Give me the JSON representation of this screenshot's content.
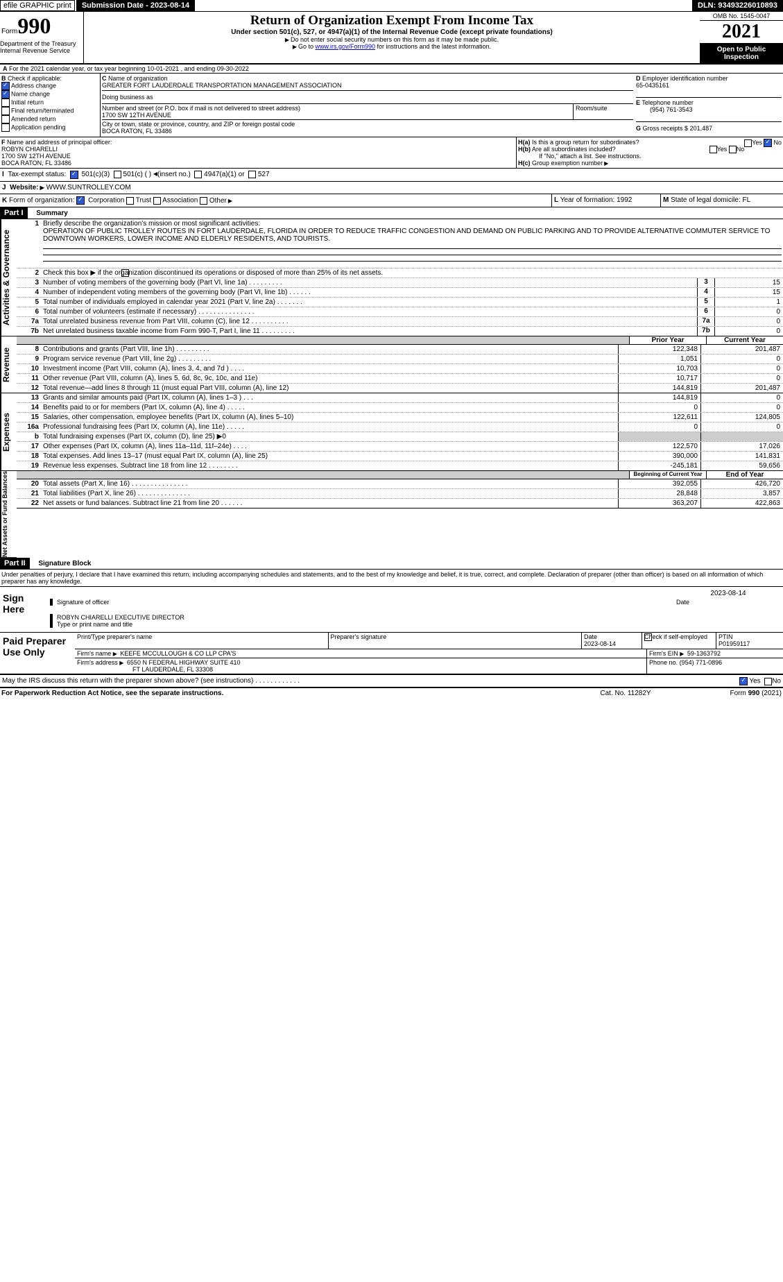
{
  "header": {
    "efile": "efile GRAPHIC print",
    "submission": "Submission Date - 2023-08-14",
    "dln": "DLN: 93493226010893"
  },
  "form": {
    "word": "Form",
    "num": "990",
    "title": "Return of Organization Exempt From Income Tax",
    "sub": "Under section 501(c), 527, or 4947(a)(1) of the Internal Revenue Code (except private foundations)",
    "l1": "Do not enter social security numbers on this form as it may be made public.",
    "l2": "Go to ",
    "link": "www.irs.gov/Form990",
    "l3": " for instructions and the latest information.",
    "omb": "OMB No. 1545-0047",
    "year": "2021",
    "open": "Open to Public Inspection",
    "dept": "Department of the Treasury Internal Revenue Service"
  },
  "A": {
    "txt": "For the 2021 calendar year, or tax year beginning 10-01-2021   , and ending 09-30-2022"
  },
  "B": {
    "label": "Check if applicable:",
    "i1": "Address change",
    "i2": "Name change",
    "i3": "Initial return",
    "i4": "Final return/terminated",
    "i5": "Amended return",
    "i6": "Application pending"
  },
  "C": {
    "namehdr": "Name of organization",
    "name": "GREATER FORT LAUDERDALE TRANSPORTATION MANAGEMENT ASSOCIATION",
    "dba": "Doing business as",
    "addrh": "Number and street (or P.O. box if mail is not delivered to street address)",
    "room": "Room/suite",
    "addr": "1700 SW 12TH AVENUE",
    "cityh": "City or town, state or province, country, and ZIP or foreign postal code",
    "city": "BOCA RATON, FL  33486"
  },
  "D": {
    "h": "Employer identification number",
    "v": "65-0435161"
  },
  "E": {
    "h": "Telephone number",
    "v": "(954) 761-3543"
  },
  "G": {
    "h": "Gross receipts $",
    "v": "201,487"
  },
  "F": {
    "h": "Name and address of principal officer:",
    "n": "ROBYN CHIARELLI",
    "a1": "1700 SW 12TH AVENUE",
    "a2": "BOCA RATON, FL  33486"
  },
  "H": {
    "a": "Is this a group return for subordinates?",
    "b": "Are all subordinates included?",
    "no": "If \"No,\" attach a list. See instructions.",
    "c": "Group exemption number",
    "yes": "Yes",
    "nolbl": "No"
  },
  "I": {
    "h": "Tax-exempt status:",
    "o1": "501(c)(3)",
    "o2": "501(c) (   )",
    "ins": "(insert no.)",
    "o3": "4947(a)(1) or",
    "o4": "527"
  },
  "J": {
    "h": "Website:",
    "v": "WWW.SUNTROLLEY.COM"
  },
  "K": {
    "h": "Form of organization:",
    "o1": "Corporation",
    "o2": "Trust",
    "o3": "Association",
    "o4": "Other"
  },
  "L": {
    "h": "Year of formation:",
    "v": "1992"
  },
  "M": {
    "h": "State of legal domicile:",
    "v": "FL"
  },
  "partI": {
    "label": "Part I",
    "title": "Summary"
  },
  "s1": {
    "h": "Briefly describe the organization's mission or most significant activities:",
    "txt": "OPERATION OF PUBLIC TROLLEY ROUTES IN FORT LAUDERDALE, FLORIDA IN ORDER TO REDUCE TRAFFIC CONGESTION AND DEMAND ON PUBLIC PARKING AND TO PROVIDE ALTERNATIVE COMMUTER SERVICE TO DOWNTOWN WORKERS, LOWER INCOME AND ELDERLY RESIDENTS, AND TOURISTS."
  },
  "gov": {
    "side": "Activities & Governance",
    "l2": "Check this box ▶      if the organization discontinued its operations or disposed of more than 25% of its net assets.",
    "l3": "Number of voting members of the governing body (Part VI, line 1a)   .    .    .    .    .    .    .    .    .",
    "v3": "15",
    "l4": "Number of independent voting members of the governing body (Part VI, line 1b)   .    .    .    .    .    .",
    "v4": "15",
    "l5": "Total number of individuals employed in calendar year 2021 (Part V, line 2a)   .    .    .    .    .    .    .",
    "v5": "1",
    "l6": "Total number of volunteers (estimate if necessary)    .    .    .    .    .    .    .    .    .    .    .    .    .    .    .",
    "v6": "0",
    "l7a": "Total unrelated business revenue from Part VIII, column (C), line 12   .    .    .    .    .    .    .    .    .    .",
    "v7a": "0",
    "l7b": "Net unrelated business taxable income from Form 990-T, Part I, line 11    .    .    .    .    .    .    .    .    .",
    "v7b": "0"
  },
  "rev": {
    "side": "Revenue",
    "prior": "Prior Year",
    "curr": "Current Year",
    "r": [
      {
        "n": "8",
        "t": "Contributions and grants (Part VIII, line 1h)    .    .    .    .    .    .    .    .    .",
        "p": "122,348",
        "c": "201,487"
      },
      {
        "n": "9",
        "t": "Program service revenue (Part VIII, line 2g)    .    .    .    .    .    .    .    .    .",
        "p": "1,051",
        "c": "0"
      },
      {
        "n": "10",
        "t": "Investment income (Part VIII, column (A), lines 3, 4, and 7d )    .    .    .    .",
        "p": "10,703",
        "c": "0"
      },
      {
        "n": "11",
        "t": "Other revenue (Part VIII, column (A), lines 5, 6d, 8c, 9c, 10c, and 11e)",
        "p": "10,717",
        "c": "0"
      },
      {
        "n": "12",
        "t": "Total revenue—add lines 8 through 11 (must equal Part VIII, column (A), line 12)",
        "p": "144,819",
        "c": "201,487"
      }
    ]
  },
  "exp": {
    "side": "Expenses",
    "r": [
      {
        "n": "13",
        "t": "Grants and similar amounts paid (Part IX, column (A), lines 1–3 )   .    .    .",
        "p": "144,819",
        "c": "0"
      },
      {
        "n": "14",
        "t": "Benefits paid to or for members (Part IX, column (A), line 4)   .    .    .    .    .",
        "p": "0",
        "c": "0"
      },
      {
        "n": "15",
        "t": "Salaries, other compensation, employee benefits (Part IX, column (A), lines 5–10)",
        "p": "122,611",
        "c": "124,805"
      },
      {
        "n": "16a",
        "t": "Professional fundraising fees (Part IX, column (A), line 11e)   .    .    .    .    .",
        "p": "0",
        "c": "0"
      },
      {
        "n": "b",
        "t": "Total fundraising expenses (Part IX, column (D), line 25) ▶0",
        "p": "",
        "c": "",
        "grey": true
      },
      {
        "n": "17",
        "t": "Other expenses (Part IX, column (A), lines 11a–11d, 11f–24e)    .    .    .    .",
        "p": "122,570",
        "c": "17,026"
      },
      {
        "n": "18",
        "t": "Total expenses. Add lines 13–17 (must equal Part IX, column (A), line 25)",
        "p": "390,000",
        "c": "141,831"
      },
      {
        "n": "19",
        "t": "Revenue less expenses. Subtract line 18 from line 12   .    .    .    .    .    .    .    .",
        "p": "-245,181",
        "c": "59,656"
      }
    ]
  },
  "net": {
    "side": "Net Assets or Fund Balances",
    "begin": "Beginning of Current Year",
    "end": "End of Year",
    "r": [
      {
        "n": "20",
        "t": "Total assets (Part X, line 16)   .    .    .    .    .    .    .    .    .    .    .    .    .    .    .",
        "p": "392,055",
        "c": "426,720"
      },
      {
        "n": "21",
        "t": "Total liabilities (Part X, line 26)    .    .    .    .    .    .    .    .    .    .    .    .    .    .",
        "p": "28,848",
        "c": "3,857"
      },
      {
        "n": "22",
        "t": "Net assets or fund balances. Subtract line 21 from line 20   .    .    .    .    .    .",
        "p": "363,207",
        "c": "422,863"
      }
    ]
  },
  "partII": {
    "label": "Part II",
    "title": "Signature Block",
    "decl": "Under penalties of perjury, I declare that I have examined this return, including accompanying schedules and statements, and to the best of my knowledge and belief, it is true, correct, and complete. Declaration of preparer (other than officer) is based on all information of which preparer has any knowledge."
  },
  "sign": {
    "h": "Sign Here",
    "sig": "Signature of officer",
    "date": "Date",
    "d": "2023-08-14",
    "name": "ROBYN CHIARELLI  EXECUTIVE DIRECTOR",
    "typ": "Type or print name and title"
  },
  "paid": {
    "h": "Paid Preparer Use Only",
    "c1": "Print/Type preparer's name",
    "c2": "Preparer's signature",
    "c3": "Date",
    "d": "2023-08-14",
    "c4": "Check        if self-employed",
    "ptin": "PTIN",
    "ptinv": "P01959117",
    "firm": "Firm's name",
    "firmv": "KEEFE MCCULLOUGH & CO LLP CPA'S",
    "ein": "Firm's EIN",
    "einv": "59-1363792",
    "addr": "Firm's address",
    "addrv": "6550 N FEDERAL HIGHWAY SUITE 410",
    "city": "FT LAUDERDALE, FL  33308",
    "ph": "Phone no.",
    "phv": "(954) 771-0896"
  },
  "foot": {
    "q": "May the IRS discuss this return with the preparer shown above? (see instructions)    .    .    .    .    .    .    .    .    .    .    .    .",
    "yes": "Yes",
    "no": "No",
    "pra": "For Paperwork Reduction Act Notice, see the separate instructions.",
    "cat": "Cat. No. 11282Y",
    "form": "Form 990 (2021)"
  }
}
